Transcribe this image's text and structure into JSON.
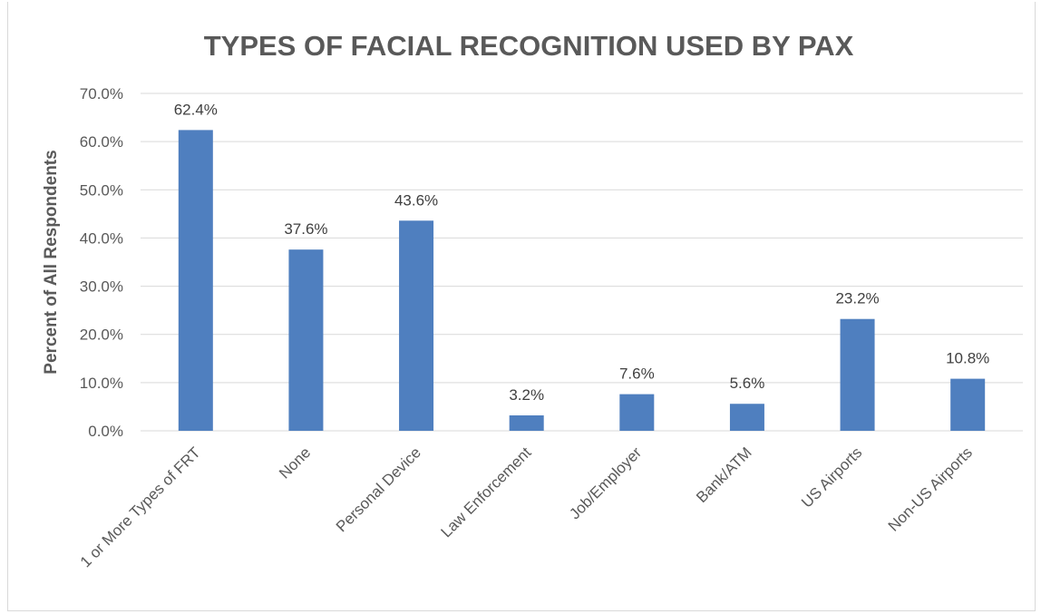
{
  "chart_data": {
    "type": "bar",
    "title": "TYPES OF FACIAL RECOGNITION USED BY PAX",
    "xlabel": "",
    "ylabel": "Percent of All Respondents",
    "categories": [
      "1 or More Types of FRT",
      "None",
      "Personal Device",
      "Law Enforcement",
      "Job/Employer",
      "Bank/ATM",
      "US Airports",
      "Non-US Airports"
    ],
    "values": [
      62.4,
      37.6,
      43.6,
      3.2,
      7.6,
      5.6,
      23.2,
      10.8
    ],
    "data_labels": [
      "62.4%",
      "37.6%",
      "43.6%",
      "3.2%",
      "7.6%",
      "5.6%",
      "23.2%",
      "10.8%"
    ],
    "ylim": [
      0,
      70
    ],
    "yticks": [
      "0.0%",
      "10.0%",
      "20.0%",
      "30.0%",
      "40.0%",
      "50.0%",
      "60.0%",
      "70.0%"
    ],
    "grid": true,
    "legend": "none",
    "bar_color": "#4f7fbf",
    "grid_color": "#d9d9d9"
  }
}
